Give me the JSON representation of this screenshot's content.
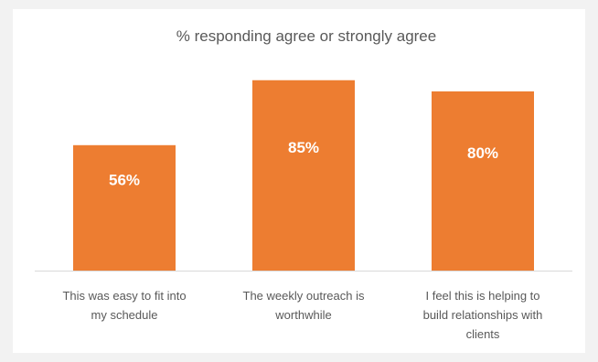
{
  "chart_data": {
    "type": "bar",
    "title": "% responding agree or strongly agree",
    "xlabel": "",
    "ylabel": "",
    "categories": [
      [
        "This was easy to fit into",
        "my schedule"
      ],
      [
        "The weekly outreach is",
        "worthwhile"
      ],
      [
        "I feel this is helping to",
        "build relationships with",
        "clients"
      ]
    ],
    "values": [
      56,
      85,
      80
    ],
    "value_labels": [
      "56%",
      "85%",
      "80%"
    ],
    "ylim": [
      0,
      100
    ],
    "grid": false,
    "legend": "none",
    "colors": {
      "bar": "#ed7d31",
      "axis": "#d9d9d9",
      "text": "#595959",
      "value_text": "#ffffff",
      "background": "#ffffff"
    }
  }
}
